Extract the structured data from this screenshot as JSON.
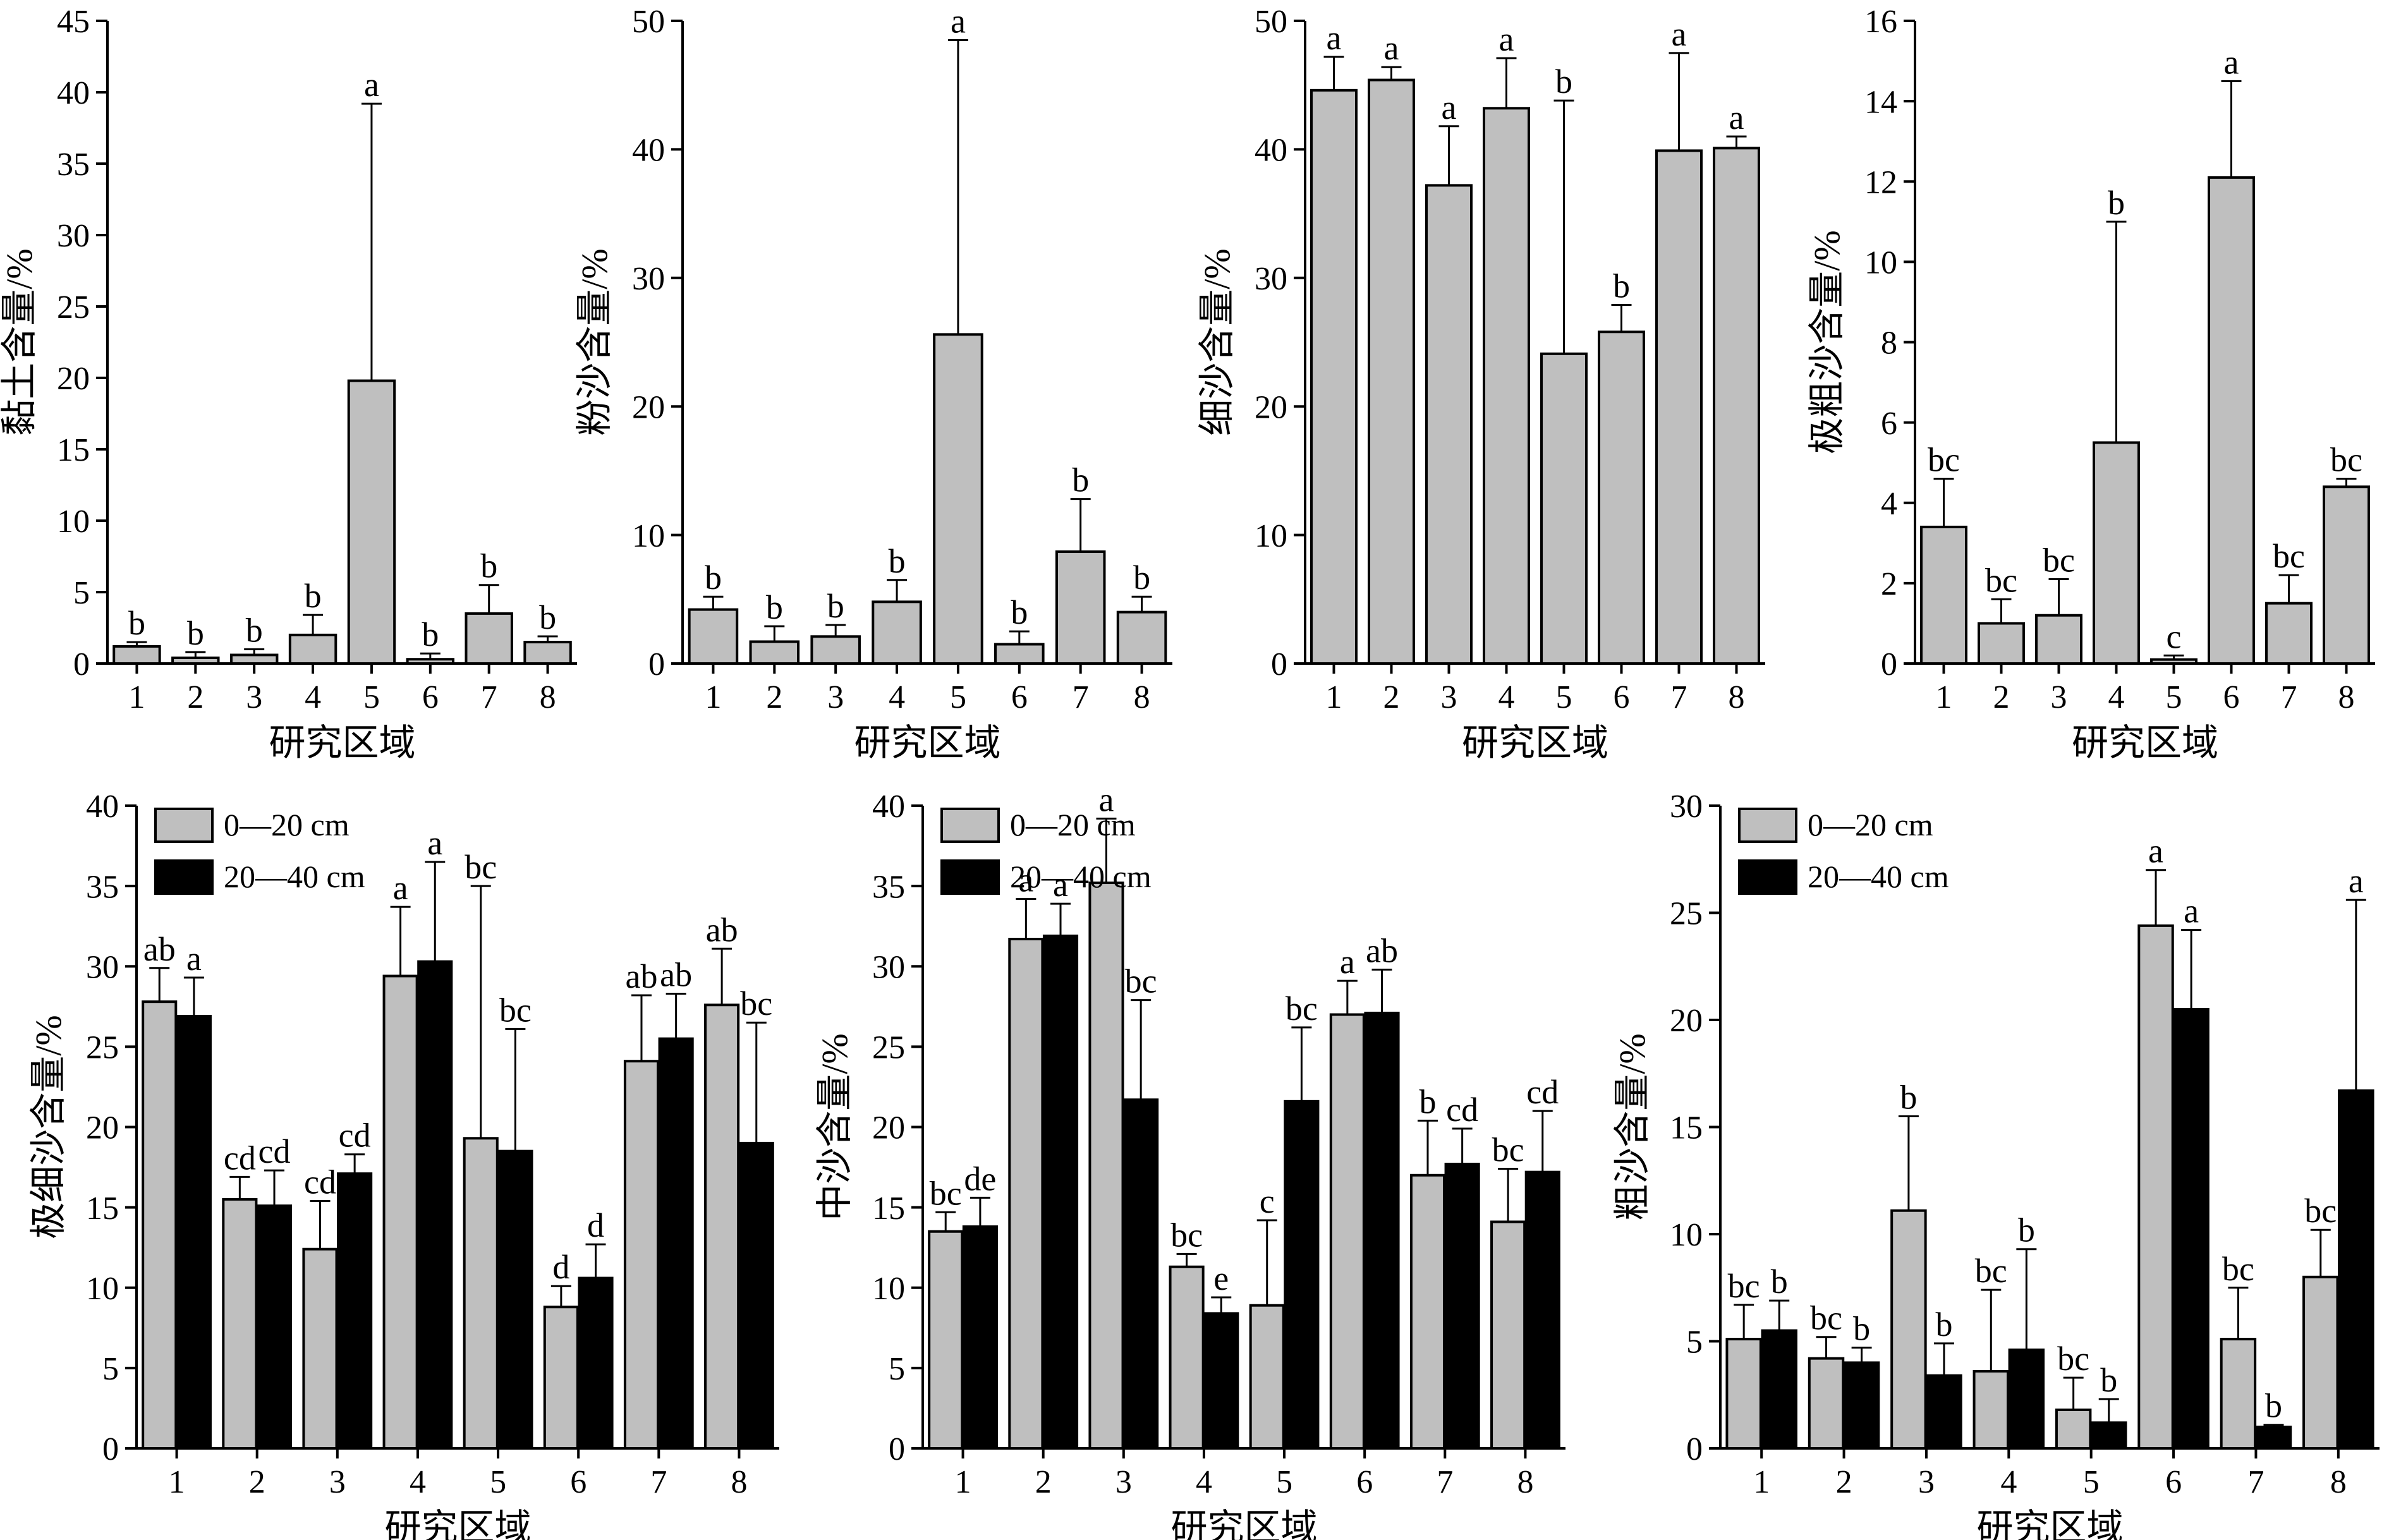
{
  "colors": {
    "gray": "#bfbfbf",
    "black": "#000000"
  },
  "legend_labels": [
    "0—20 cm",
    "20—40 cm"
  ],
  "chart_data": [
    {
      "type": "bar",
      "xlabel": "研究区域",
      "ylabel": "黏土含量/%",
      "categories": [
        "1",
        "2",
        "3",
        "4",
        "5",
        "6",
        "7",
        "8"
      ],
      "ylim": [
        0,
        45
      ],
      "yticks": [
        0,
        5,
        10,
        15,
        20,
        25,
        30,
        35,
        40,
        45
      ],
      "series": [
        {
          "values": [
            1.2,
            0.4,
            0.6,
            2.0,
            19.8,
            0.3,
            3.5,
            1.5
          ],
          "errors": [
            0.3,
            0.4,
            0.4,
            1.4,
            19.4,
            0.4,
            2.0,
            0.4
          ],
          "letters": [
            "b",
            "b",
            "b",
            "b",
            "a",
            "b",
            "b",
            "b"
          ]
        }
      ]
    },
    {
      "type": "bar",
      "xlabel": "研究区域",
      "ylabel": "粉沙含量/%",
      "categories": [
        "1",
        "2",
        "3",
        "4",
        "5",
        "6",
        "7",
        "8"
      ],
      "ylim": [
        0,
        50
      ],
      "yticks": [
        0,
        10,
        20,
        30,
        40,
        50
      ],
      "series": [
        {
          "values": [
            4.2,
            1.7,
            2.1,
            4.8,
            25.6,
            1.5,
            8.7,
            4.0
          ],
          "errors": [
            1.0,
            1.2,
            0.9,
            1.7,
            22.9,
            1.0,
            4.1,
            1.2
          ],
          "letters": [
            "b",
            "b",
            "b",
            "b",
            "a",
            "b",
            "b",
            "b"
          ]
        }
      ]
    },
    {
      "type": "bar",
      "xlabel": "研究区域",
      "ylabel": "细沙含量/%",
      "categories": [
        "1",
        "2",
        "3",
        "4",
        "5",
        "6",
        "7",
        "8"
      ],
      "ylim": [
        0,
        50
      ],
      "yticks": [
        0,
        10,
        20,
        30,
        40,
        50
      ],
      "series": [
        {
          "values": [
            44.6,
            45.4,
            37.2,
            43.2,
            24.1,
            25.8,
            39.9,
            40.1
          ],
          "errors": [
            2.6,
            1.0,
            4.6,
            3.9,
            19.7,
            2.1,
            7.6,
            0.9
          ],
          "letters": [
            "a",
            "a",
            "a",
            "a",
            "b",
            "b",
            "a",
            "a"
          ]
        }
      ]
    },
    {
      "type": "bar",
      "xlabel": "研究区域",
      "ylabel": "极粗沙含量/%",
      "categories": [
        "1",
        "2",
        "3",
        "4",
        "5",
        "6",
        "7",
        "8"
      ],
      "ylim": [
        0,
        16
      ],
      "yticks": [
        0,
        2,
        4,
        6,
        8,
        10,
        12,
        14,
        16
      ],
      "series": [
        {
          "values": [
            3.4,
            1.0,
            1.2,
            5.5,
            0.1,
            12.1,
            1.5,
            4.4
          ],
          "errors": [
            1.2,
            0.6,
            0.9,
            5.5,
            0.1,
            2.4,
            0.7,
            0.2
          ],
          "letters": [
            "bc",
            "bc",
            "bc",
            "b",
            "c",
            "a",
            "bc",
            "bc"
          ]
        }
      ]
    },
    {
      "type": "bar",
      "xlabel": "研究区域",
      "ylabel": "极细沙含量/%",
      "categories": [
        "1",
        "2",
        "3",
        "4",
        "5",
        "6",
        "7",
        "8"
      ],
      "ylim": [
        0,
        40
      ],
      "yticks": [
        0,
        5,
        10,
        15,
        20,
        25,
        30,
        35,
        40
      ],
      "series": [
        {
          "name": "0—20 cm",
          "values": [
            27.8,
            15.5,
            12.4,
            29.4,
            19.3,
            8.8,
            24.1,
            27.6
          ],
          "errors": [
            2.1,
            1.4,
            3.0,
            4.3,
            15.7,
            1.3,
            4.1,
            3.5
          ],
          "letters": [
            "ab",
            "cd",
            "cd",
            "a",
            "bc",
            "d",
            "ab",
            "ab"
          ]
        },
        {
          "name": "20—40 cm",
          "values": [
            26.9,
            15.1,
            17.1,
            30.3,
            18.5,
            10.6,
            25.5,
            19.0
          ],
          "errors": [
            2.4,
            2.2,
            1.2,
            6.2,
            7.6,
            2.1,
            2.8,
            7.5
          ],
          "letters": [
            "a",
            "cd",
            "cd",
            "a",
            "bc",
            "d",
            "ab",
            "bc"
          ]
        }
      ]
    },
    {
      "type": "bar",
      "xlabel": "研究区域",
      "ylabel": "中沙含量/%",
      "categories": [
        "1",
        "2",
        "3",
        "4",
        "5",
        "6",
        "7",
        "8"
      ],
      "ylim": [
        0,
        40
      ],
      "yticks": [
        0,
        5,
        10,
        15,
        20,
        25,
        30,
        35,
        40
      ],
      "series": [
        {
          "name": "0—20 cm",
          "values": [
            13.5,
            31.7,
            35.2,
            11.3,
            8.9,
            27.0,
            17.0,
            14.1
          ],
          "errors": [
            1.2,
            2.5,
            4.0,
            0.8,
            5.3,
            2.1,
            3.4,
            3.3
          ],
          "letters": [
            "bc",
            "a",
            "a",
            "bc",
            "c",
            "a",
            "b",
            "bc"
          ]
        },
        {
          "name": "20—40 cm",
          "values": [
            13.8,
            31.9,
            21.7,
            8.4,
            21.6,
            27.1,
            17.7,
            17.2
          ],
          "errors": [
            1.8,
            2.0,
            6.2,
            1.0,
            4.6,
            2.7,
            2.2,
            3.8
          ],
          "letters": [
            "de",
            "a",
            "bc",
            "e",
            "bc",
            "ab",
            "cd",
            "cd"
          ]
        }
      ]
    },
    {
      "type": "bar",
      "xlabel": "研究区域",
      "ylabel": "粗沙含量/%",
      "categories": [
        "1",
        "2",
        "3",
        "4",
        "5",
        "6",
        "7",
        "8"
      ],
      "ylim": [
        0,
        30
      ],
      "yticks": [
        0,
        5,
        10,
        15,
        20,
        25,
        30
      ],
      "series": [
        {
          "name": "0—20 cm",
          "values": [
            5.1,
            4.2,
            11.1,
            3.6,
            1.8,
            24.4,
            5.1,
            8.0
          ],
          "errors": [
            1.6,
            1.0,
            4.4,
            3.8,
            1.5,
            2.6,
            2.4,
            2.2
          ],
          "letters": [
            "bc",
            "bc",
            "b",
            "bc",
            "bc",
            "a",
            "bc",
            "bc"
          ]
        },
        {
          "name": "20—40 cm",
          "values": [
            5.5,
            4.0,
            3.4,
            4.6,
            1.2,
            20.5,
            1.0,
            16.7
          ],
          "errors": [
            1.4,
            0.7,
            1.5,
            4.7,
            1.1,
            3.7,
            0.1,
            8.9
          ],
          "letters": [
            "b",
            "b",
            "b",
            "b",
            "b",
            "a",
            "b",
            "a"
          ]
        }
      ]
    }
  ]
}
